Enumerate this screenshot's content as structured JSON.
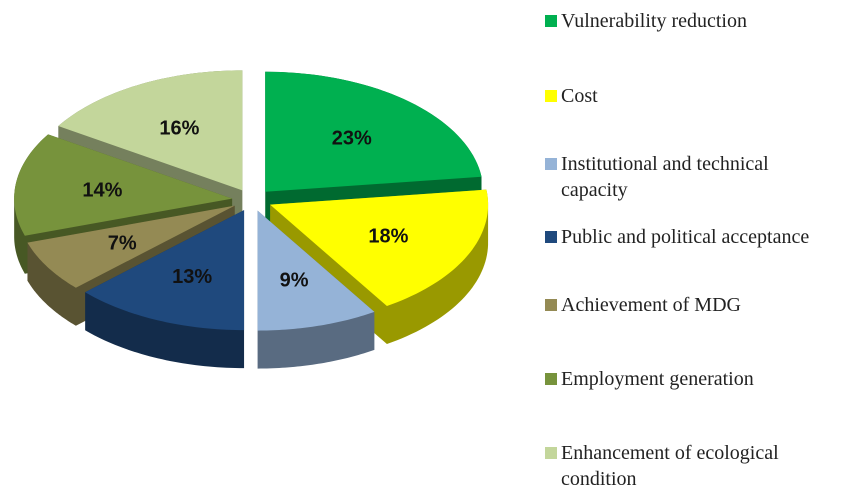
{
  "chart_data": {
    "type": "pie",
    "categories": [
      "Vulnerability reduction",
      "Cost",
      "Institutional and technical capacity",
      "Public and political acceptance",
      "Achievement of  MDG",
      "Employment generation",
      "Enhancement of ecological condition"
    ],
    "values": [
      23,
      18,
      9,
      13,
      7,
      14,
      16
    ],
    "value_labels": [
      "23%",
      "18%",
      "9%",
      "13%",
      "7%",
      "14%",
      "16%"
    ],
    "colors": [
      "#00b050",
      "#ffff00",
      "#95b3d7",
      "#1f497d",
      "#948a54",
      "#77933c",
      "#c3d69b"
    ],
    "legend": "right"
  }
}
